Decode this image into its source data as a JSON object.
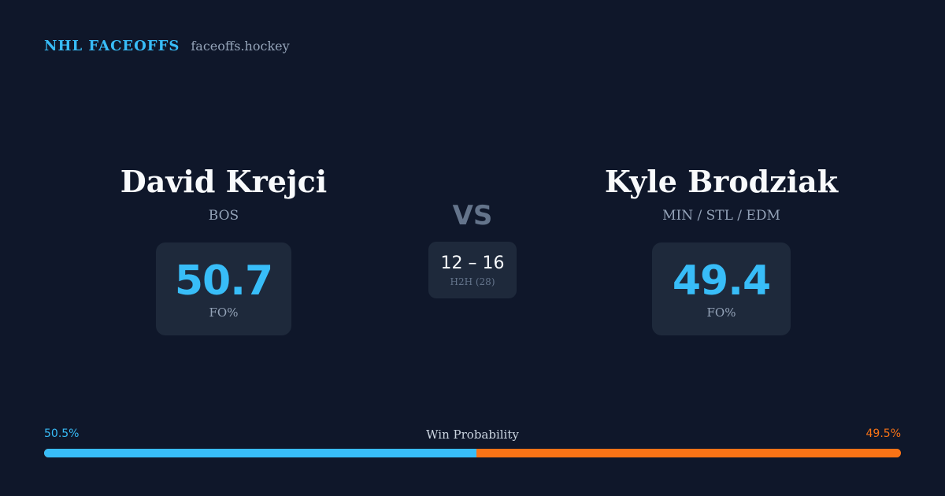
{
  "brand": {
    "title": "NHL FACEOFFS",
    "site": "faceoffs.hockey"
  },
  "player1": {
    "name": "David Krejci",
    "team": "BOS",
    "fo_pct": "50.7",
    "fo_label": "FO%"
  },
  "player2": {
    "name": "Kyle Brodziak",
    "team": "MIN / STL / EDM",
    "fo_pct": "49.4",
    "fo_label": "FO%"
  },
  "vs_label": "VS",
  "h2h": {
    "score": "12 – 16",
    "label": "H2H (28)"
  },
  "win_probability": {
    "label": "Win Probability",
    "player1_text": "50.5%",
    "player2_text": "49.5%",
    "player1_value": 50.5,
    "player2_value": 49.5
  },
  "colors": {
    "background": "#0f172a",
    "card": "#1e293b",
    "accent_blue": "#38bdf8",
    "accent_orange": "#f97316",
    "muted": "#94a3b8"
  }
}
